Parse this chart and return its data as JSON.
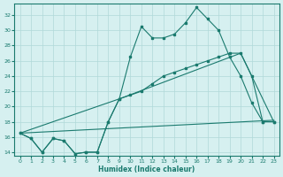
{
  "xlabel": "Humidex (Indice chaleur)",
  "bg_color": "#d6f0f0",
  "grid_color": "#b0d8d8",
  "line_color": "#1a7a6e",
  "xlim": [
    -0.5,
    23.5
  ],
  "ylim": [
    13.5,
    33.5
  ],
  "yticks": [
    14,
    16,
    18,
    20,
    22,
    24,
    26,
    28,
    30,
    32
  ],
  "xticks": [
    0,
    1,
    2,
    3,
    4,
    5,
    6,
    7,
    8,
    9,
    10,
    11,
    12,
    13,
    14,
    15,
    16,
    17,
    18,
    19,
    20,
    21,
    22,
    23
  ],
  "line1_x": [
    0,
    1,
    2,
    3,
    4,
    5,
    6,
    7,
    8,
    9,
    10,
    11,
    12,
    13,
    14,
    15,
    16,
    17,
    18,
    19,
    20,
    21,
    22,
    23
  ],
  "line1_y": [
    16.5,
    15.8,
    14.0,
    15.8,
    15.5,
    13.8,
    14.0,
    14.0,
    18.0,
    21.0,
    26.5,
    30.5,
    29.0,
    29.0,
    29.5,
    31.0,
    33.0,
    31.5,
    30.0,
    26.5,
    24.0,
    20.5,
    18.0,
    18.0
  ],
  "line2_x": [
    0,
    1,
    2,
    3,
    4,
    5,
    6,
    7,
    8,
    9,
    10,
    11,
    12,
    13,
    14,
    15,
    16,
    17,
    18,
    19,
    20,
    21,
    22,
    23
  ],
  "line2_y": [
    16.5,
    15.8,
    14.0,
    15.8,
    15.5,
    13.8,
    14.0,
    14.0,
    18.0,
    21.0,
    21.5,
    22.0,
    23.0,
    24.0,
    24.5,
    25.0,
    25.5,
    26.0,
    26.5,
    27.0,
    27.0,
    24.0,
    18.0,
    18.0
  ],
  "line3_x": [
    0,
    23
  ],
  "line3_y": [
    16.5,
    18.2
  ],
  "line4_x": [
    0,
    9,
    20,
    23
  ],
  "line4_y": [
    16.5,
    21.0,
    27.0,
    18.0
  ]
}
